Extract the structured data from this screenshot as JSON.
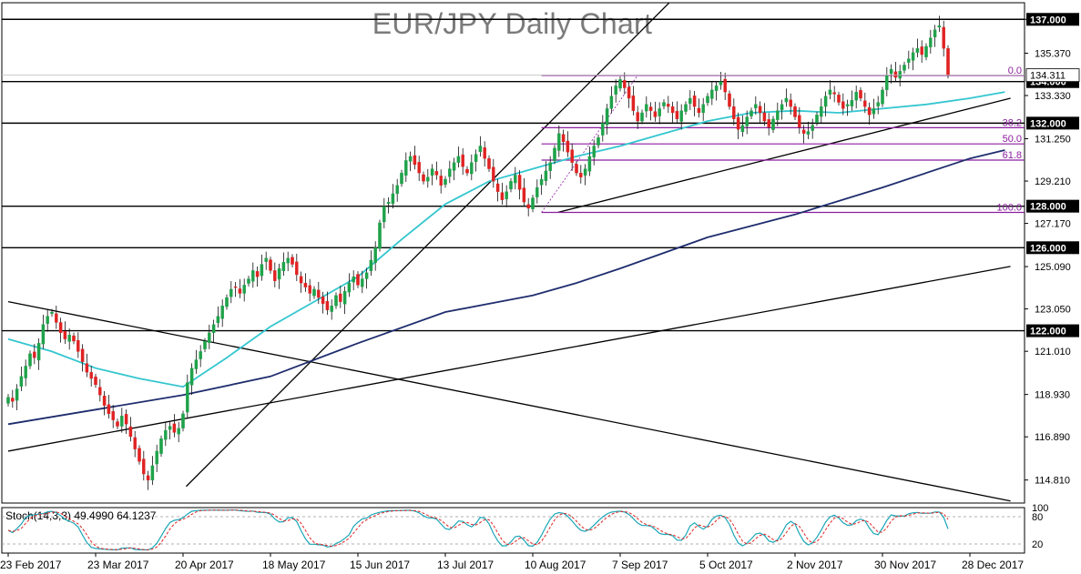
{
  "chart_data": {
    "type": "candlestick",
    "title": "EUR/JPY Daily Chart",
    "price_axis": {
      "range": [
        113.7,
        137.8
      ],
      "tick_labels": [
        "137.000",
        "135.370",
        "133.330",
        "131.250",
        "129.210",
        "127.170",
        "125.090",
        "123.050",
        "121.010",
        "118.930",
        "116.890",
        "114.810"
      ],
      "tick_values": [
        137.0,
        135.37,
        133.33,
        131.25,
        129.21,
        127.17,
        125.09,
        123.05,
        121.01,
        118.93,
        116.89,
        114.81
      ]
    },
    "date_axis": {
      "labels": [
        "23 Feb 2017",
        "23 Mar 2017",
        "20 Apr 2017",
        "18 May 2017",
        "15 Jun 2017",
        "13 Jul 2017",
        "10 Aug 2017",
        "7 Sep 2017",
        "5 Oct 2017",
        "2 Nov 2017",
        "30 Nov 2017",
        "28 Dec 2017"
      ],
      "label_bar_index": [
        0,
        20,
        40,
        60,
        80,
        100,
        120,
        140,
        160,
        180,
        200,
        220
      ]
    },
    "horizontal_levels": [
      {
        "value": 137.0,
        "label": "137.000"
      },
      {
        "value": 134.0,
        "label": "134.000"
      },
      {
        "value": 132.0,
        "label": "132.000"
      },
      {
        "value": 128.0,
        "label": "128.000"
      },
      {
        "value": 126.0,
        "label": "126.000"
      },
      {
        "value": 122.0,
        "label": "122.000"
      }
    ],
    "current_price": {
      "value": 134.311,
      "label": "134.311"
    },
    "fibonacci": {
      "high": 134.3,
      "low": 127.7,
      "levels": [
        {
          "label": "0.0",
          "value": 134.3
        },
        {
          "label": "38.2",
          "value": 131.78
        },
        {
          "label": "50.0",
          "value": 131.0
        },
        {
          "label": "61.8",
          "value": 130.22
        },
        {
          "label": "100.0",
          "value": 127.7
        }
      ]
    },
    "trendlines": [
      {
        "from": [
          "2017-02-16",
          123.4
        ],
        "to": [
          "2018-01-03",
          113.8
        ]
      },
      {
        "from": [
          "2017-02-16",
          116.2
        ],
        "to": [
          "2018-01-03",
          125.1
        ]
      },
      {
        "from": [
          "2017-04-14",
          114.5
        ],
        "to": [
          "2017-09-27",
          139.5
        ]
      },
      {
        "from": [
          "2017-08-11",
          127.7
        ],
        "to": [
          "2018-01-03",
          133.2
        ]
      }
    ],
    "closes": [
      118.8,
      118.6,
      119.2,
      119.8,
      120.3,
      120.9,
      120.7,
      121.4,
      122.3,
      122.7,
      122.9,
      122.4,
      121.9,
      121.6,
      121.8,
      121.5,
      121.0,
      120.5,
      120.0,
      119.7,
      119.4,
      118.9,
      118.4,
      118.0,
      117.7,
      117.4,
      117.9,
      117.5,
      116.9,
      116.3,
      115.7,
      115.1,
      114.8,
      115.5,
      116.2,
      116.8,
      117.2,
      117.4,
      117.1,
      117.3,
      118.0,
      119.5,
      120.2,
      120.6,
      121.0,
      121.5,
      121.9,
      122.3,
      122.7,
      123.2,
      123.6,
      124.0,
      124.1,
      123.8,
      124.2,
      124.5,
      124.9,
      124.6,
      125.2,
      125.5,
      124.9,
      124.4,
      125.0,
      125.3,
      125.5,
      125.2,
      124.7,
      124.3,
      124.1,
      123.8,
      124.0,
      123.6,
      123.3,
      123.0,
      123.2,
      123.7,
      123.4,
      123.9,
      124.3,
      124.6,
      124.2,
      124.5,
      124.8,
      125.4,
      126.0,
      127.2,
      128.0,
      128.2,
      128.6,
      129.0,
      129.6,
      130.2,
      130.4,
      130.0,
      129.6,
      129.2,
      129.4,
      129.8,
      129.5,
      129.0,
      129.3,
      129.8,
      130.1,
      130.4,
      129.9,
      129.6,
      130.1,
      130.5,
      130.9,
      130.3,
      129.8,
      129.2,
      128.7,
      128.3,
      128.7,
      129.2,
      129.5,
      128.8,
      128.2,
      127.9,
      128.4,
      128.9,
      129.3,
      129.7,
      130.1,
      130.8,
      131.5,
      131.1,
      130.6,
      130.1,
      129.6,
      129.4,
      129.8,
      130.4,
      130.9,
      131.3,
      132.0,
      132.7,
      133.3,
      133.8,
      134.1,
      133.7,
      133.2,
      132.6,
      132.1,
      132.5,
      132.9,
      132.6,
      132.3,
      132.7,
      133.0,
      132.8,
      132.5,
      132.2,
      132.6,
      132.9,
      133.2,
      132.8,
      132.5,
      132.9,
      133.3,
      133.6,
      133.8,
      134.0,
      133.5,
      132.8,
      132.2,
      131.7,
      131.9,
      132.3,
      132.6,
      132.9,
      132.5,
      132.1,
      131.8,
      132.2,
      132.6,
      132.9,
      133.2,
      132.8,
      132.3,
      131.8,
      131.5,
      131.6,
      131.9,
      132.4,
      132.8,
      133.3,
      133.6,
      133.4,
      133.0,
      132.7,
      132.9,
      133.1,
      133.5,
      133.2,
      132.8,
      132.4,
      132.7,
      133.0,
      133.6,
      134.3,
      134.6,
      134.2,
      134.5,
      134.8,
      135.1,
      135.4,
      135.6,
      135.3,
      135.7,
      136.1,
      136.5,
      136.7,
      135.6,
      134.3
    ],
    "series": [
      {
        "name": "MA (cyan)",
        "color": "#33c6cf",
        "points": [
          [
            0,
            121.6
          ],
          [
            10,
            121.0
          ],
          [
            20,
            120.2
          ],
          [
            30,
            119.7
          ],
          [
            40,
            119.3
          ],
          [
            50,
            120.7
          ],
          [
            60,
            122.2
          ],
          [
            70,
            123.4
          ],
          [
            80,
            124.6
          ],
          [
            90,
            126.4
          ],
          [
            100,
            128.1
          ],
          [
            110,
            129.2
          ],
          [
            120,
            129.8
          ],
          [
            130,
            130.4
          ],
          [
            140,
            130.9
          ],
          [
            150,
            131.5
          ],
          [
            160,
            132.1
          ],
          [
            170,
            132.5
          ],
          [
            180,
            132.6
          ],
          [
            190,
            132.5
          ],
          [
            200,
            132.7
          ],
          [
            210,
            132.9
          ],
          [
            220,
            133.2
          ],
          [
            228,
            133.5
          ]
        ]
      },
      {
        "name": "MA (navy)",
        "color": "#1f2d6e",
        "points": [
          [
            0,
            117.5
          ],
          [
            20,
            118.2
          ],
          [
            40,
            118.9
          ],
          [
            60,
            119.8
          ],
          [
            80,
            121.4
          ],
          [
            100,
            122.9
          ],
          [
            110,
            123.3
          ],
          [
            120,
            123.7
          ],
          [
            130,
            124.3
          ],
          [
            140,
            125.0
          ],
          [
            160,
            126.5
          ],
          [
            180,
            127.6
          ],
          [
            200,
            128.9
          ],
          [
            220,
            130.3
          ],
          [
            228,
            130.7
          ]
        ]
      }
    ],
    "colors": {
      "bull": "#1fa24a",
      "bear": "#e02222",
      "fib": "#8b1e9e",
      "level": "#000000",
      "axis_bg": "#ffffff"
    },
    "stochastic": {
      "label": "Stoch(14,3,3) 49.4990 64.1237",
      "k": 49.499,
      "d": 64.1237,
      "range": [
        0,
        100
      ],
      "tick_labels": [
        "100",
        "80",
        "20"
      ],
      "tick_values": [
        100,
        80,
        20
      ]
    },
    "grid": false
  }
}
